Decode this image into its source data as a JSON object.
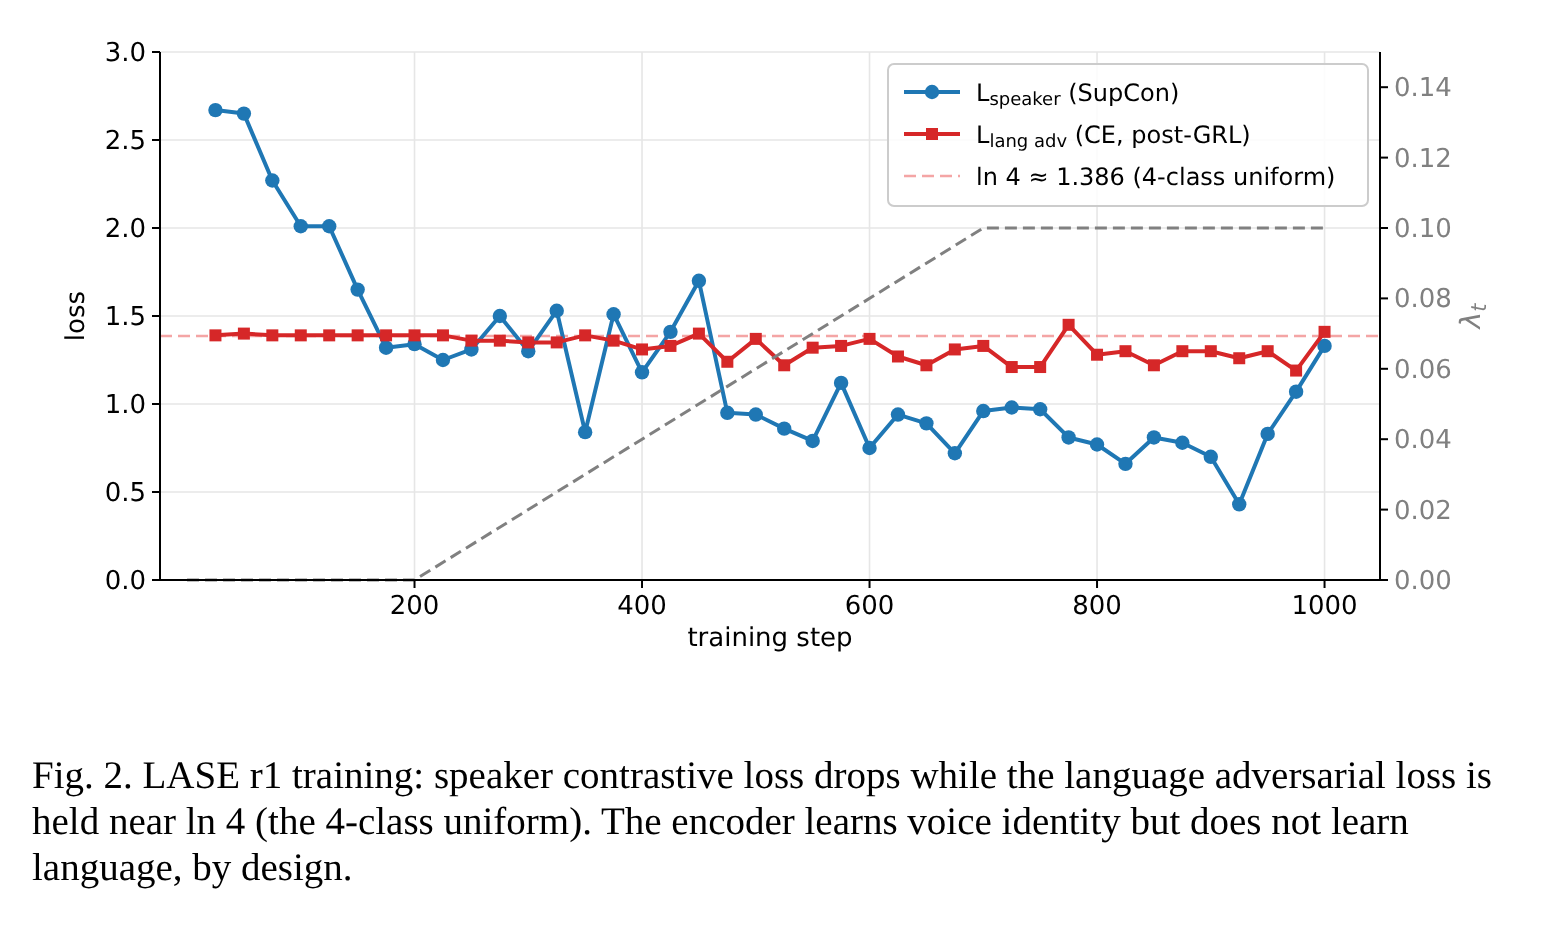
{
  "chart_data": {
    "type": "line",
    "xlabel": "training step",
    "ylabel": "loss",
    "y2label": "λ$_{t}$",
    "xlim": [
      -23.75,
      1048.75
    ],
    "xticks": [
      200,
      400,
      600,
      800,
      1000
    ],
    "ylim": [
      0,
      3
    ],
    "yticks": [
      {
        "value": 0,
        "label": "0.0"
      },
      {
        "value": 0.5,
        "label": "0.5"
      },
      {
        "value": 1,
        "label": "1.0"
      },
      {
        "value": 1.5,
        "label": "1.5"
      },
      {
        "value": 2,
        "label": "2.0"
      },
      {
        "value": 2.5,
        "label": "2.5"
      },
      {
        "value": 3,
        "label": "3.0"
      }
    ],
    "y2lim": [
      0,
      0.15
    ],
    "y2ticks": [
      {
        "value": 0,
        "label": "0.00"
      },
      {
        "value": 0.02,
        "label": "0.02"
      },
      {
        "value": 0.04,
        "label": "0.04"
      },
      {
        "value": 0.06,
        "label": "0.06"
      },
      {
        "value": 0.08,
        "label": "0.08"
      },
      {
        "value": 0.1,
        "label": "0.10"
      },
      {
        "value": 0.12,
        "label": "0.12"
      },
      {
        "value": 0.14,
        "label": "0.14"
      }
    ],
    "x": [
      25,
      50,
      75,
      100,
      125,
      150,
      175,
      200,
      225,
      250,
      275,
      300,
      325,
      350,
      375,
      400,
      425,
      450,
      475,
      500,
      525,
      550,
      575,
      600,
      625,
      650,
      675,
      700,
      725,
      750,
      775,
      800,
      825,
      850,
      875,
      900,
      925,
      950,
      975,
      1000
    ],
    "series": [
      {
        "name": "L$_{speaker}$ (SupCon)",
        "color": "#1f77b4",
        "marker": "circle",
        "values": [
          2.67,
          2.65,
          2.27,
          2.01,
          2.01,
          1.65,
          1.32,
          1.34,
          1.25,
          1.31,
          1.5,
          1.3,
          1.53,
          0.84,
          1.51,
          1.18,
          1.41,
          1.7,
          0.95,
          0.94,
          0.86,
          0.79,
          1.12,
          0.75,
          0.94,
          0.89,
          0.72,
          0.96,
          0.98,
          0.97,
          0.81,
          0.77,
          0.66,
          0.81,
          0.78,
          0.7,
          0.43,
          0.83,
          1.07,
          1.33
        ]
      },
      {
        "name": "L$_{lang adv}$ (CE, post-GRL)",
        "color": "#d62728",
        "marker": "square",
        "values": [
          1.39,
          1.4,
          1.39,
          1.39,
          1.39,
          1.39,
          1.39,
          1.39,
          1.39,
          1.36,
          1.36,
          1.35,
          1.35,
          1.39,
          1.36,
          1.31,
          1.33,
          1.4,
          1.24,
          1.37,
          1.22,
          1.32,
          1.33,
          1.37,
          1.27,
          1.22,
          1.31,
          1.33,
          1.21,
          1.21,
          1.45,
          1.28,
          1.3,
          1.22,
          1.3,
          1.3,
          1.26,
          1.3,
          1.19,
          1.41
        ]
      },
      {
        "axis": "y2",
        "color": "#808080",
        "marker": "none",
        "line_style": "dashed",
        "x": [
          0,
          200,
          700,
          1000
        ],
        "values": [
          0,
          0,
          0.1,
          0.1
        ]
      }
    ],
    "ref_lines": [
      {
        "axis": "y",
        "value": 1.386,
        "label": "ln 4 ≈ 1.386 (4-class uniform)",
        "color": "#f4a5a5",
        "line_style": "dashed"
      }
    ],
    "grid": true,
    "legend": "top right",
    "annotations": [
      "Fig. 2.  LASE r1 training: speaker contrastive loss drops while the language adversarial loss is held near ln 4 (the 4-class uniform). The encoder learns voice identity but does not learn language, by design."
    ]
  }
}
